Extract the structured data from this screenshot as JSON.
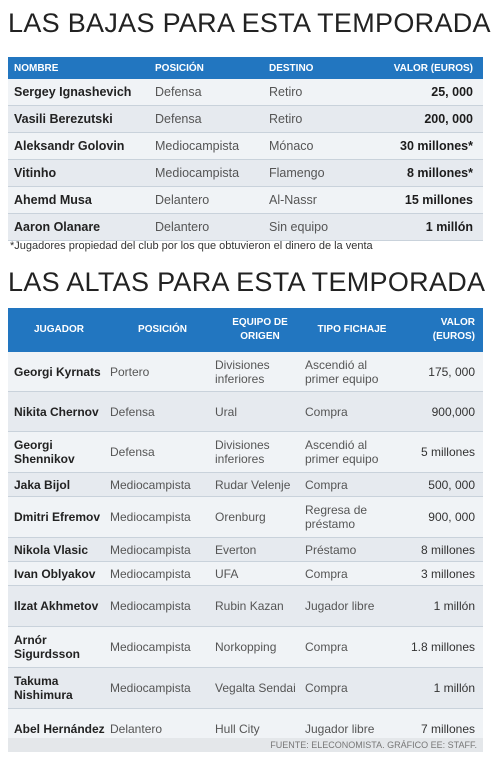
{
  "bajas": {
    "title": "LAS BAJAS PARA ESTA TEMPORADA",
    "headers": [
      "NOMBRE",
      "POSICIÓN",
      "DESTINO",
      "VALOR (EUROS)"
    ],
    "rows": [
      [
        "Sergey Ignashevich",
        "Defensa",
        "Retiro",
        "25, 000"
      ],
      [
        "Vasili Berezutski",
        "Defensa",
        "Retiro",
        "200, 000"
      ],
      [
        "Aleksandr Golovin",
        "Mediocampista",
        "Mónaco",
        "30 millones*"
      ],
      [
        "Vitinho",
        "Mediocampista",
        "Flamengo",
        "8 millones*"
      ],
      [
        "Ahemd Musa",
        "Delantero",
        "Al-Nassr",
        "15 millones"
      ],
      [
        "Aaron Olanare",
        "Delantero",
        "Sin equipo",
        "1 millón"
      ]
    ],
    "note": "*Jugadores propiedad del club por los que obtuvieron el dinero de la venta"
  },
  "altas": {
    "title": "LAS ALTAS PARA ESTA TEMPORADA",
    "headers": [
      "JUGADOR",
      "POSICIÓN",
      "EQUIPO DE ORIGEN",
      "TIPO FICHAJE",
      "VALOR (EUROS)"
    ],
    "rows": [
      [
        "Georgi Kyrnats",
        "Portero",
        "Divisiones inferiores",
        "Ascendió al primer equipo",
        "175, 000"
      ],
      [
        "Nikita Chernov",
        "Defensa",
        "Ural",
        "Compra",
        "900,000"
      ],
      [
        "Georgi Shennikov",
        "Defensa",
        "Divisiones inferiores",
        "Ascendió al primer equipo",
        "5 millones"
      ],
      [
        "Jaka Bijol",
        "Mediocampista",
        "Rudar Velenje",
        "Compra",
        "500, 000"
      ],
      [
        "Dmitri Efremov",
        "Mediocampista",
        "Orenburg",
        "Regresa de préstamo",
        "900, 000"
      ],
      [
        "Nikola Vlasic",
        "Mediocampista",
        "Everton",
        "Préstamo",
        "8 millones"
      ],
      [
        "Ivan Oblyakov",
        "Mediocampista",
        "UFA",
        "Compra",
        "3 millones"
      ],
      [
        "Ilzat Akhmetov",
        "Mediocampista",
        "Rubin Kazan",
        "Jugador libre",
        "1 millón"
      ],
      [
        "Arnór Sigurdsson",
        "Mediocampista",
        "Norkopping",
        "Compra",
        "1.8 millones"
      ],
      [
        "Takuma Nishimura",
        "Mediocampista",
        "Vegalta Sendai",
        "Compra",
        "1 millón"
      ],
      [
        "Abel Hernández",
        "Delantero",
        "Hull City",
        "Jugador libre",
        "7 millones"
      ]
    ]
  },
  "source": "FUENTE: ELECONOMISTA. GRÁFICO EE: STAFF."
}
